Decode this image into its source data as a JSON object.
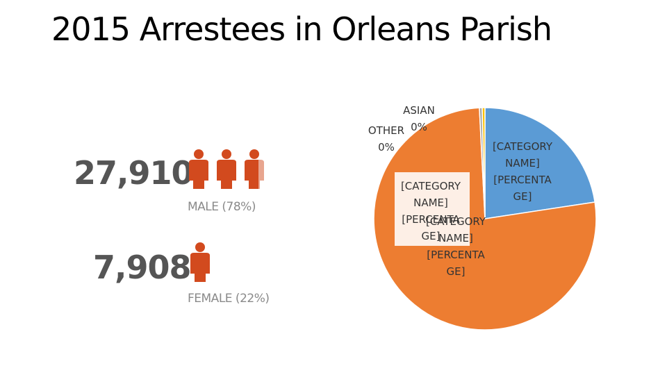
{
  "title": "2015 Arrestees in Orleans Parish",
  "stats": {
    "male": {
      "count": "27,910",
      "label": "MALE (78%)"
    },
    "female": {
      "count": "7,908",
      "label": "FEMALE (22%)"
    }
  },
  "colors": {
    "person_icon": "#d24a1e",
    "person_icon_faded": "#e8a58f"
  },
  "chart_data": {
    "type": "pie",
    "title": "",
    "slices": [
      {
        "name": "[CATEGORY NAME]",
        "value": 22.6,
        "color": "#5b9bd5",
        "label_lines": [
          "[CATEGORY",
          "NAME]",
          "[PERCENTA",
          "GE]"
        ]
      },
      {
        "name": "[CATEGORY NAME]",
        "value": 76.6,
        "color": "#ed7d31",
        "label_lines": [
          "[CATEGORY",
          "NAME]",
          "[PERCENTA",
          "GE]"
        ]
      },
      {
        "name": "OTHER",
        "value": 0.4,
        "color": "#a5a5a5",
        "label_lines": [
          "OTHER",
          "0%"
        ]
      },
      {
        "name": "ASIAN",
        "value": 0.4,
        "color": "#ffc000",
        "label_lines": [
          "ASIAN",
          "0%"
        ]
      }
    ],
    "overlay_label": {
      "label_lines": [
        "[CATEGORY",
        "NAME]",
        "[PERCENTA",
        "GE]"
      ]
    }
  }
}
